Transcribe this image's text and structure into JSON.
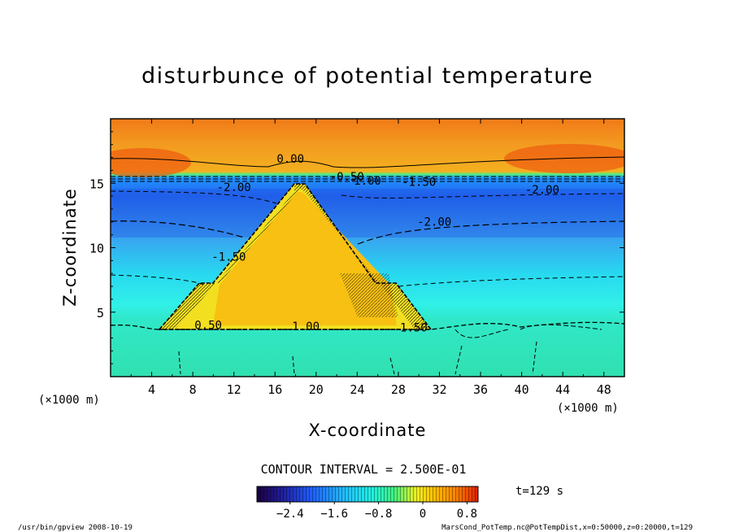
{
  "chart_data": {
    "type": "heatmap",
    "title": "disturbunce of potential temperature",
    "xlabel": "X-coordinate",
    "ylabel": "Z-coordinate",
    "x_units": "(×1000 m)",
    "y_units": "(×1000 m)",
    "xlim": [
      0,
      50
    ],
    "ylim": [
      0,
      20
    ],
    "x_ticks": [
      4,
      8,
      12,
      16,
      20,
      24,
      28,
      32,
      36,
      40,
      44,
      48
    ],
    "y_ticks": [
      5,
      10,
      15
    ],
    "contour_interval": "CONTOUR INTERVAL = 2.500E-01",
    "time_label": "t=129 s",
    "colorbar": {
      "range": [
        -3.0,
        1.0
      ],
      "ticks": [
        -2.4,
        -1.6,
        -0.8,
        0,
        0.8
      ],
      "tick_labels": [
        "−2.4",
        "−1.6",
        "−0.8",
        "0",
        "0.8"
      ],
      "colors": [
        "#1a0040",
        "#2020a0",
        "#2060ff",
        "#20c0ff",
        "#20f0e0",
        "#40f080",
        "#f0f020",
        "#ffc000",
        "#ff8000",
        "#e02000"
      ]
    },
    "contour_labels": [
      {
        "x": 17.5,
        "z": 16.6,
        "text": "0.00"
      },
      {
        "x": 23.0,
        "z": 15.2,
        "text": "-0.50"
      },
      {
        "x": 25.0,
        "z": 14.9,
        "text": "1.00"
      },
      {
        "x": 30.0,
        "z": 14.8,
        "text": "-1.50"
      },
      {
        "x": 12.0,
        "z": 14.4,
        "text": "-2.00"
      },
      {
        "x": 42.0,
        "z": 14.2,
        "text": "-2.00"
      },
      {
        "x": 31.5,
        "z": 11.7,
        "text": "-2.00"
      },
      {
        "x": 11.5,
        "z": 9.0,
        "text": "-1.50"
      },
      {
        "x": 9.5,
        "z": 3.7,
        "text": "0.50"
      },
      {
        "x": 19.0,
        "z": 3.6,
        "text": "1.00"
      },
      {
        "x": 29.5,
        "z": 3.5,
        "text": "1.50"
      }
    ],
    "footer_left": "/usr/bin/gpview   2008-10-19",
    "footer_right": "MarsCond_PotTemp.nc@PotTempDist,x=0:50000,z=0:20000,t=129"
  }
}
